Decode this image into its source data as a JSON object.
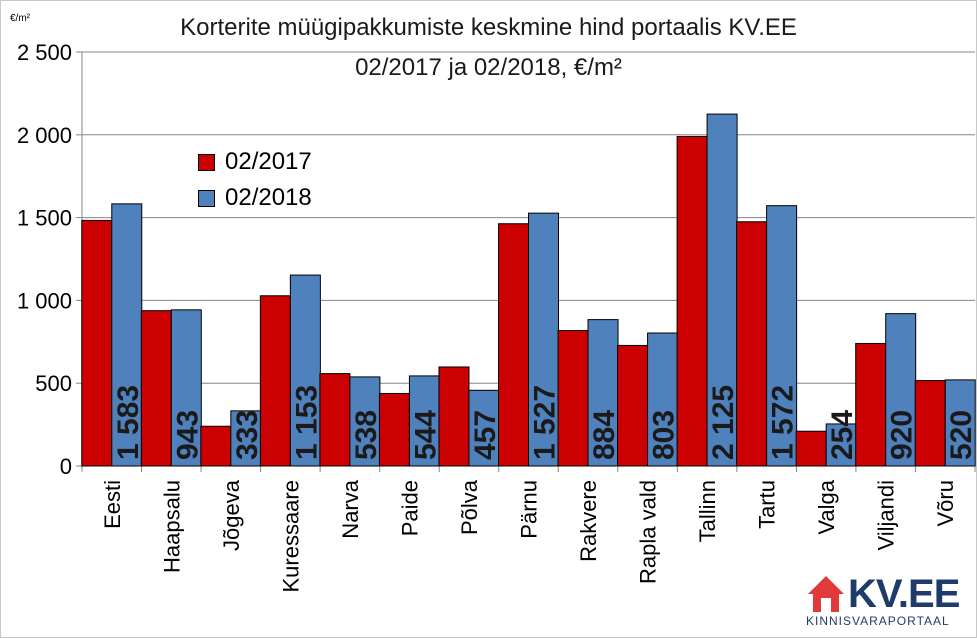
{
  "chart_data": {
    "type": "bar",
    "title_line1": "Korterite müügipakkumiste keskmine hind portaalis KV.EE",
    "title_line2": "02/2017 ja 02/2018, €/m²",
    "unit": "€/m²",
    "categories": [
      "Eesti",
      "Haapsalu",
      "Jõgeva",
      "Kuressaare",
      "Narva",
      "Paide",
      "Põlva",
      "Pärnu",
      "Rakvere",
      "Rapla vald",
      "Tallinn",
      "Tartu",
      "Valga",
      "Viljandi",
      "Võru"
    ],
    "series": [
      {
        "name": "02/2017",
        "color": "#cc0000",
        "values": [
          1483,
          938,
          240,
          1028,
          558,
          438,
          598,
          1463,
          818,
          728,
          1990,
          1475,
          210,
          740,
          516
        ]
      },
      {
        "name": "02/2018",
        "color": "#4f81bd",
        "values": [
          1583,
          943,
          333,
          1153,
          538,
          544,
          457,
          1527,
          884,
          803,
          2125,
          1572,
          254,
          920,
          520
        ]
      }
    ],
    "data_labels_2018": [
      "1 583",
      "943",
      "333",
      "1 153",
      "538",
      "544",
      "457",
      "1 527",
      "884",
      "803",
      "2 125",
      "1 572",
      "254",
      "920",
      "520"
    ],
    "y_ticks": [
      0,
      500,
      1000,
      1500,
      2000,
      2500
    ],
    "y_tick_labels": [
      "0",
      "500",
      "1 000",
      "1 500",
      "2 000",
      "2 500"
    ],
    "ylim": [
      0,
      2500
    ],
    "grid": true,
    "legend_position": "top-left"
  },
  "logo": {
    "main_text": "KV.EE",
    "sub_text": "KINNISVARAPORTAAL",
    "house_color": "#e03a3a",
    "text_color": "#1f3b6b"
  }
}
